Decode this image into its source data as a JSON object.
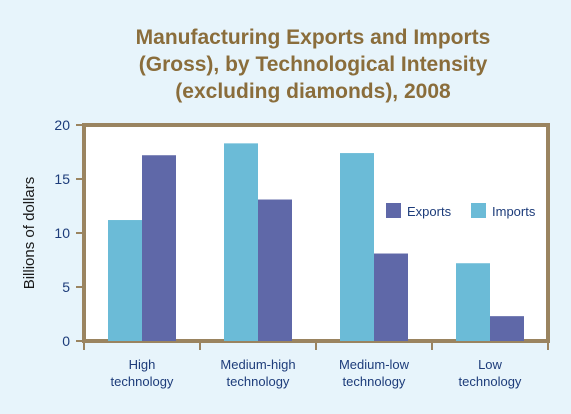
{
  "chart_data": {
    "type": "bar",
    "title": [
      "Manufacturing Exports and Imports",
      "(Gross), by Technological Intensity",
      "(excluding diamonds), 2008"
    ],
    "ylabel": "Billions of dollars",
    "xlabel": "",
    "categories": [
      [
        "High",
        "technology"
      ],
      [
        "Medium-high",
        "technology"
      ],
      [
        "Medium-low",
        "technology"
      ],
      [
        "Low",
        "technology"
      ]
    ],
    "series": [
      {
        "name": "Imports",
        "color": "#6bbbd7",
        "values": [
          11.2,
          18.3,
          17.4,
          7.2
        ]
      },
      {
        "name": "Exports",
        "color": "#5f68a8",
        "values": [
          17.2,
          13.1,
          8.1,
          2.3
        ]
      }
    ],
    "legend_order": [
      "Exports",
      "Imports"
    ],
    "ylim": [
      0,
      20
    ],
    "yticks": [
      0,
      5,
      10,
      15,
      20
    ],
    "grid": false,
    "legend_position": "right"
  }
}
